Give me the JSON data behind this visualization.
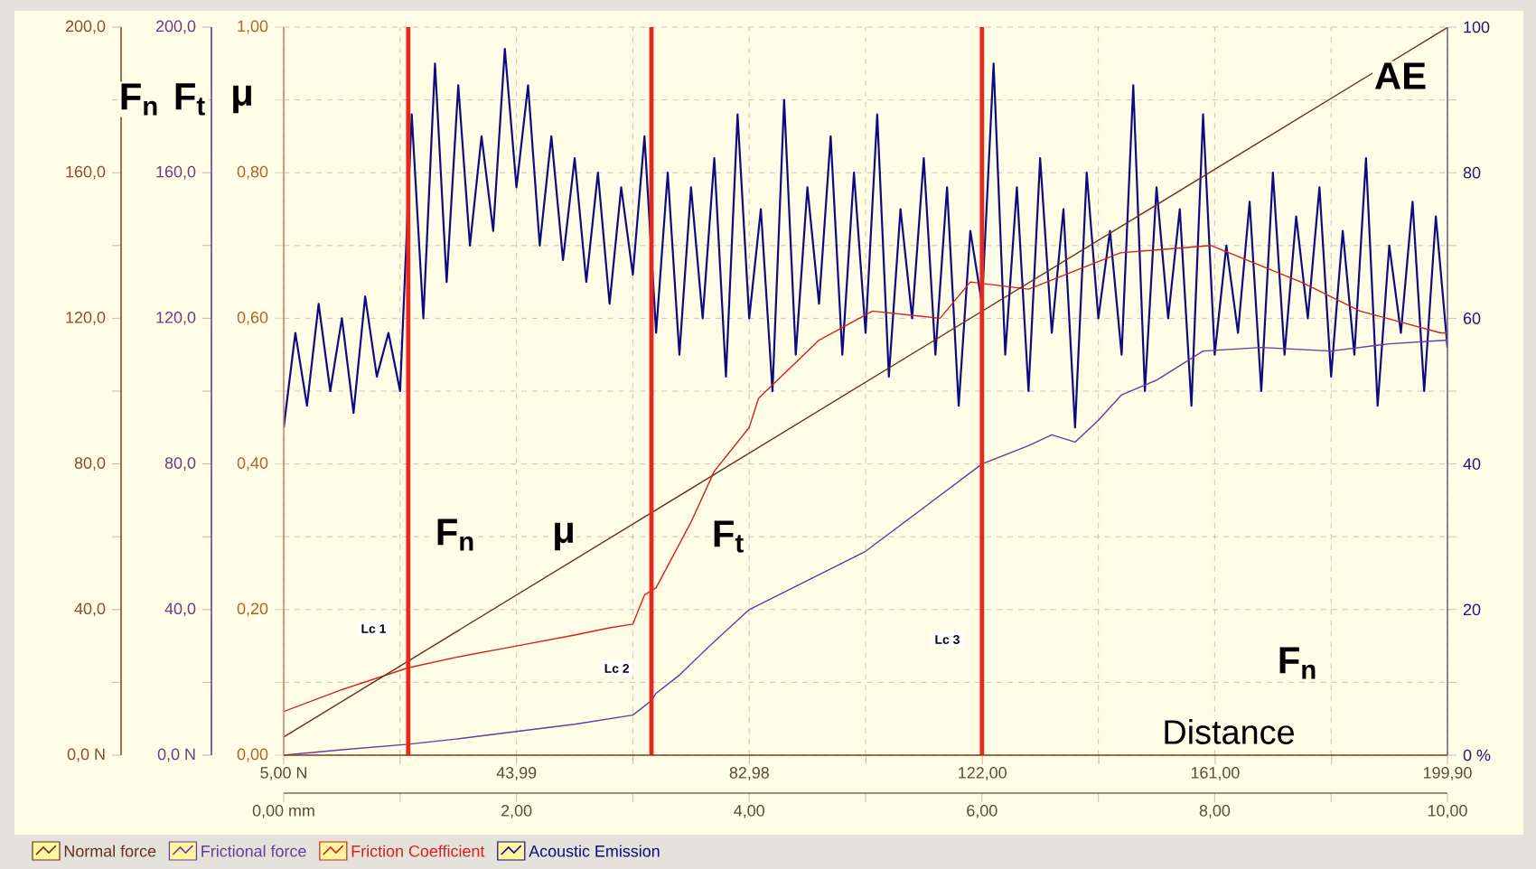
{
  "chart_data": {
    "type": "line",
    "xlabel": "Distance",
    "x2label": "F$_{n}$",
    "ylabel": "F$_{n}$",
    "y3label": "μ",
    "y2label": "AE",
    "xlim": [
      0,
      10
    ],
    "xticks": [
      {
        "value": 0,
        "label": "0,00 mm"
      },
      {
        "value": 1,
        "label": null
      },
      {
        "value": 2,
        "label": "2,00"
      },
      {
        "value": 3,
        "label": null
      },
      {
        "value": 4,
        "label": "4,00"
      },
      {
        "value": 5,
        "label": null
      },
      {
        "value": 6,
        "label": "6,00"
      },
      {
        "value": 7,
        "label": null
      },
      {
        "value": 8,
        "label": "8,00"
      },
      {
        "value": 9,
        "label": null
      },
      {
        "value": 10,
        "label": "10,00"
      }
    ],
    "x2lim": [
      5,
      199.9
    ],
    "x2ticks": [
      {
        "value": 5,
        "label": "5,00 N"
      },
      {
        "value": 24.5,
        "label": null
      },
      {
        "value": 43.99,
        "label": "43,99"
      },
      {
        "value": 63.5,
        "label": null
      },
      {
        "value": 82.98,
        "label": "82,98"
      },
      {
        "value": 102.5,
        "label": null
      },
      {
        "value": 122,
        "label": "122,00"
      },
      {
        "value": 141.5,
        "label": null
      },
      {
        "value": 161,
        "label": "161,00"
      },
      {
        "value": 180.5,
        "label": null
      },
      {
        "value": 199.9,
        "label": "199,90"
      }
    ],
    "ylim": [
      0,
      200
    ],
    "yticks": [
      {
        "value": 0,
        "label": "0,0 N"
      },
      {
        "value": 20,
        "label": null
      },
      {
        "value": 40,
        "label": "40,0"
      },
      {
        "value": 60,
        "label": null
      },
      {
        "value": 80,
        "label": "80,0"
      },
      {
        "value": 100,
        "label": null
      },
      {
        "value": 120,
        "label": "120,0"
      },
      {
        "value": 140,
        "label": null
      },
      {
        "value": 160,
        "label": "160,0"
      },
      {
        "value": 180,
        "label": null
      },
      {
        "value": 200,
        "label": "200,0"
      }
    ],
    "y3lim": [
      0,
      1
    ],
    "y3ticks": [
      {
        "value": 0,
        "label": "0,00"
      },
      {
        "value": 0.1,
        "label": null
      },
      {
        "value": 0.2,
        "label": "0,20"
      },
      {
        "value": 0.3,
        "label": null
      },
      {
        "value": 0.4,
        "label": "0,40"
      },
      {
        "value": 0.5,
        "label": null
      },
      {
        "value": 0.6,
        "label": "0,60"
      },
      {
        "value": 0.7,
        "label": null
      },
      {
        "value": 0.8,
        "label": "0,80"
      },
      {
        "value": 0.9,
        "label": null
      },
      {
        "value": 1,
        "label": "1,00"
      }
    ],
    "y2lim": [
      0,
      100
    ],
    "y2ticks": [
      {
        "value": 0,
        "label": "0 %"
      },
      {
        "value": 10,
        "label": null
      },
      20,
      {
        "value": 30,
        "label": null
      },
      40,
      {
        "value": 50,
        "label": null
      },
      60,
      {
        "value": 70,
        "label": null
      },
      80,
      {
        "value": 90,
        "label": null
      },
      100
    ],
    "grid": true,
    "legend": "bottom",
    "series": [
      {
        "name": "Normal force",
        "color": "#6b2e1e",
        "axis": "y",
        "x": [
          0,
          10
        ],
        "values": [
          5,
          199.9
        ]
      },
      {
        "name": "Frictional force",
        "color": "#6a3a9a",
        "axis": "y",
        "x": [
          0,
          0.5,
          1.07,
          1.5,
          2.0,
          2.5,
          3.0,
          3.16,
          3.2,
          3.4,
          3.66,
          4.0,
          4.5,
          5.0,
          5.5,
          6.0,
          6.4,
          6.6,
          6.8,
          7.0,
          7.2,
          7.5,
          7.9,
          8.4,
          9.0,
          9.5,
          10
        ],
        "values": [
          0,
          1.5,
          3,
          4.5,
          6.5,
          8.5,
          11,
          15,
          17,
          22,
          30,
          40,
          48,
          56,
          68,
          80,
          85,
          88,
          86,
          92,
          99,
          103,
          111,
          112,
          111,
          113,
          114
        ]
      },
      {
        "name": "Friction Coefficient",
        "color": "#d42020",
        "axis": "y3",
        "x": [
          0,
          0.5,
          1.07,
          1.5,
          2.0,
          2.5,
          2.8,
          3.0,
          3.1,
          3.2,
          3.5,
          3.7,
          4.0,
          4.08,
          4.6,
          5.06,
          5.64,
          5.9,
          6.4,
          7.19,
          7.97,
          8.74,
          9.25,
          9.94,
          10
        ],
        "values": [
          0.06,
          0.09,
          0.12,
          0.135,
          0.15,
          0.165,
          0.175,
          0.18,
          0.22,
          0.23,
          0.32,
          0.39,
          0.45,
          0.49,
          0.57,
          0.61,
          0.6,
          0.65,
          0.64,
          0.69,
          0.7,
          0.65,
          0.61,
          0.58,
          0.58
        ]
      },
      {
        "name": "Acoustic Emission",
        "color": "#0c0c80",
        "axis": "y2",
        "x": [
          0,
          0.1,
          0.2,
          0.3,
          0.4,
          0.5,
          0.6,
          0.7,
          0.8,
          0.9,
          1.0,
          1.1,
          1.2,
          1.3,
          1.4,
          1.5,
          1.6,
          1.7,
          1.8,
          1.9,
          2.0,
          2.1,
          2.2,
          2.3,
          2.4,
          2.5,
          2.6,
          2.7,
          2.8,
          2.9,
          3.0,
          3.1,
          3.2,
          3.3,
          3.4,
          3.5,
          3.6,
          3.7,
          3.8,
          3.9,
          4.0,
          4.1,
          4.2,
          4.3,
          4.4,
          4.5,
          4.6,
          4.7,
          4.8,
          4.9,
          5.0,
          5.1,
          5.2,
          5.3,
          5.4,
          5.5,
          5.6,
          5.7,
          5.8,
          5.9,
          6.0,
          6.1,
          6.2,
          6.3,
          6.4,
          6.5,
          6.6,
          6.7,
          6.8,
          6.9,
          7.0,
          7.1,
          7.2,
          7.3,
          7.4,
          7.5,
          7.6,
          7.7,
          7.8,
          7.9,
          8.0,
          8.1,
          8.2,
          8.3,
          8.4,
          8.5,
          8.6,
          8.7,
          8.8,
          8.9,
          9.0,
          9.1,
          9.2,
          9.3,
          9.4,
          9.5,
          9.6,
          9.7,
          9.8,
          9.9,
          10.0
        ],
        "values": [
          45,
          58,
          48,
          62,
          50,
          60,
          47,
          63,
          52,
          58,
          50,
          88,
          60,
          95,
          65,
          92,
          70,
          85,
          72,
          97,
          78,
          92,
          70,
          85,
          68,
          82,
          65,
          80,
          62,
          78,
          66,
          85,
          58,
          80,
          55,
          78,
          60,
          82,
          52,
          88,
          60,
          75,
          50,
          90,
          55,
          78,
          62,
          85,
          55,
          80,
          58,
          88,
          52,
          75,
          60,
          82,
          55,
          78,
          48,
          72,
          62,
          95,
          55,
          78,
          50,
          82,
          58,
          75,
          45,
          80,
          60,
          72,
          55,
          92,
          50,
          78,
          60,
          75,
          48,
          88,
          55,
          70,
          58,
          76,
          50,
          80,
          55,
          74,
          60,
          78,
          52,
          72,
          55,
          82,
          48,
          70,
          58,
          76,
          50,
          74,
          56
        ]
      }
    ],
    "ref_lines": [
      {
        "axis": "x",
        "value": 1.07,
        "label": "Lc 1",
        "color": "#e8281e"
      },
      {
        "axis": "x",
        "value": 3.16,
        "label": "Lc 2",
        "color": "#e8281e"
      },
      {
        "axis": "x",
        "value": 6.0,
        "label": "Lc 3",
        "color": "#e8281e"
      }
    ],
    "annotations": [
      "F$_{t}$",
      "F$_{n}$",
      "μ",
      "F$_{t}$"
    ]
  }
}
